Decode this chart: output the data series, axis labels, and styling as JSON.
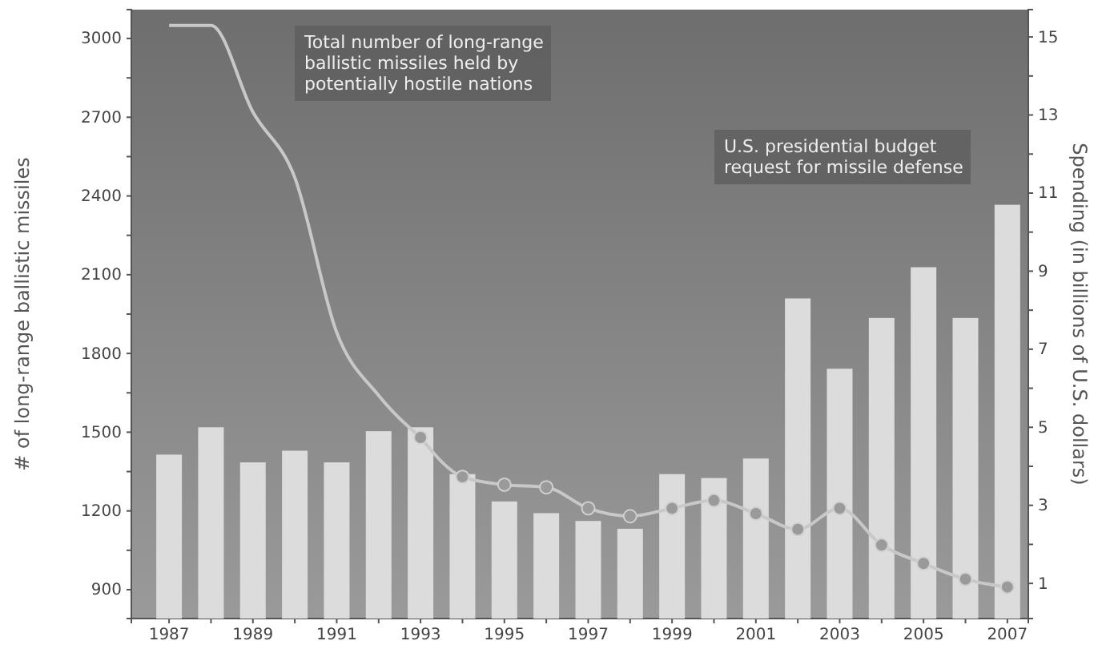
{
  "chart_data": {
    "type": "bar",
    "ylabel": "# of long-range ballistic missiles",
    "y2label": "Spending (in billions of U.S. dollars)",
    "annotations": [
      "Total number of long-range ballistic missiles held by potentially hostile nations",
      "U.S. presidential budget request for missile defense"
    ],
    "xlim": [
      1986.1,
      2007.5
    ],
    "xticks": [
      1987,
      {
        "value": 1988,
        "label": null
      },
      1989,
      {
        "value": 1990,
        "label": null
      },
      1991,
      {
        "value": 1992,
        "label": null
      },
      1993,
      {
        "value": 1994,
        "label": null
      },
      1995,
      {
        "value": 1996,
        "label": null
      },
      1997,
      {
        "value": 1998,
        "label": null
      },
      1999,
      {
        "value": 2000,
        "label": null
      },
      2001,
      {
        "value": 2002,
        "label": null
      },
      2003,
      {
        "value": 2004,
        "label": null
      },
      2005,
      {
        "value": 2006,
        "label": null
      },
      2007
    ],
    "ylim": [
      790,
      3110
    ],
    "yticks": [
      900,
      {
        "value": 1050,
        "label": null
      },
      1200,
      {
        "value": 1350,
        "label": null
      },
      1500,
      {
        "value": 1650,
        "label": null
      },
      1800,
      {
        "value": 1950,
        "label": null
      },
      2100,
      {
        "value": 2250,
        "label": null
      },
      2400,
      {
        "value": 2550,
        "label": null
      },
      2700,
      {
        "value": 2850,
        "label": null
      },
      3000
    ],
    "y2lim": [
      0.1,
      15.7
    ],
    "y2ticks": [
      1,
      {
        "value": 2,
        "label": null
      },
      3,
      {
        "value": 4,
        "label": null
      },
      5,
      {
        "value": 6,
        "label": null
      },
      7,
      {
        "value": 8,
        "label": null
      },
      9,
      {
        "value": 10,
        "label": null
      },
      11,
      {
        "value": 12,
        "label": null
      },
      13,
      {
        "value": 14,
        "label": null
      },
      15
    ],
    "series": [
      {
        "axis": "y2",
        "color": "#dcdcdc",
        "x": [
          1987,
          1988,
          1989,
          1990,
          1991,
          1992,
          1993,
          1994,
          1995,
          1996,
          1997,
          1998,
          1999,
          2000,
          2001,
          2002,
          2003,
          2004,
          2005,
          2006,
          2007
        ],
        "values": [
          4.3,
          5.0,
          4.1,
          4.4,
          4.1,
          4.9,
          5.0,
          3.8,
          3.1,
          2.8,
          2.6,
          2.4,
          3.8,
          3.7,
          4.2,
          8.3,
          6.5,
          7.8,
          9.1,
          7.8,
          10.7
        ]
      },
      {
        "type": "line",
        "color": "#c8c8c8",
        "marker": "none",
        "x": [
          1987,
          1988,
          1989,
          1990,
          1991,
          1992,
          1993
        ],
        "values": [
          3050,
          3050,
          2720,
          2470,
          1880,
          1640,
          1480
        ]
      },
      {
        "type": "line",
        "color": "#c8c8c8",
        "marker": "circle",
        "x": [
          1993,
          1994,
          1995,
          1996,
          1997,
          1998,
          1999,
          2000,
          2001,
          2002,
          2003,
          2004,
          2005,
          2006,
          2007
        ],
        "values": [
          1480,
          1330,
          1300,
          1290,
          1210,
          1180,
          1210,
          1240,
          1190,
          1130,
          1210,
          1070,
          1000,
          940,
          910
        ]
      }
    ]
  }
}
